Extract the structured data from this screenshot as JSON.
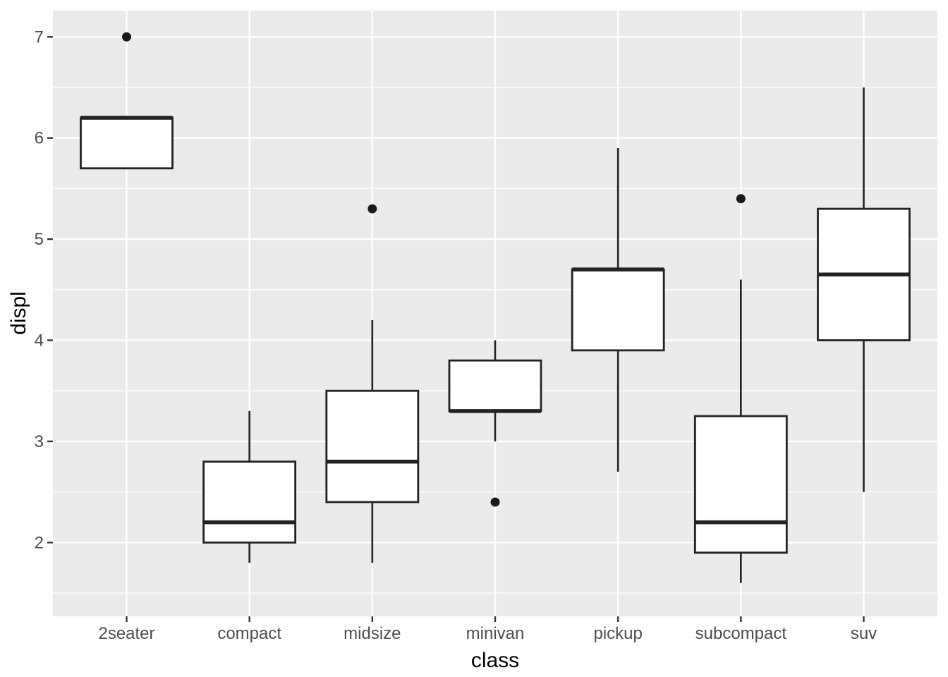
{
  "chart_data": {
    "type": "boxplot",
    "title": "",
    "xlabel": "class",
    "ylabel": "displ",
    "categories": [
      "2seater",
      "compact",
      "midsize",
      "minivan",
      "pickup",
      "subcompact",
      "suv"
    ],
    "series": [
      {
        "category": "2seater",
        "whisker_low": 5.7,
        "q1": 5.7,
        "median": 6.2,
        "q3": 6.2,
        "whisker_high": 6.2,
        "outliers": [
          7.0
        ]
      },
      {
        "category": "compact",
        "whisker_low": 1.8,
        "q1": 2.0,
        "median": 2.2,
        "q3": 2.8,
        "whisker_high": 3.3,
        "outliers": []
      },
      {
        "category": "midsize",
        "whisker_low": 1.8,
        "q1": 2.4,
        "median": 2.8,
        "q3": 3.5,
        "whisker_high": 4.2,
        "outliers": [
          5.3
        ]
      },
      {
        "category": "minivan",
        "whisker_low": 3.0,
        "q1": 3.3,
        "median": 3.3,
        "q3": 3.8,
        "whisker_high": 4.0,
        "outliers": [
          2.4
        ]
      },
      {
        "category": "pickup",
        "whisker_low": 2.7,
        "q1": 3.9,
        "median": 4.7,
        "q3": 4.7,
        "whisker_high": 5.9,
        "outliers": []
      },
      {
        "category": "subcompact",
        "whisker_low": 1.6,
        "q1": 1.9,
        "median": 2.2,
        "q3": 3.25,
        "whisker_high": 4.6,
        "outliers": [
          5.4
        ]
      },
      {
        "category": "suv",
        "whisker_low": 2.5,
        "q1": 4.0,
        "median": 4.65,
        "q3": 5.3,
        "whisker_high": 6.5,
        "outliers": []
      }
    ],
    "y_ticks": [
      2,
      3,
      4,
      5,
      6,
      7
    ],
    "y_tick_labels": [
      "2",
      "3",
      "4",
      "5",
      "6",
      "7"
    ],
    "ylim": [
      1.27,
      7.26
    ],
    "y_minor_step": 0.5,
    "grid": true,
    "legend": "none",
    "colors": {
      "page_bg": "#FFFFFF",
      "panel_bg": "#EBEBEB",
      "grid_major": "#FFFFFF",
      "grid_minor": "#FFFFFF",
      "box_stroke": "#222222",
      "box_fill": "#FFFFFF",
      "median": "#222222",
      "whisker": "#222222",
      "outlier": "#1A1A1A",
      "tick_mark": "#333333",
      "tick_label": "#4D4D4D",
      "axis_title": "#000000"
    }
  }
}
